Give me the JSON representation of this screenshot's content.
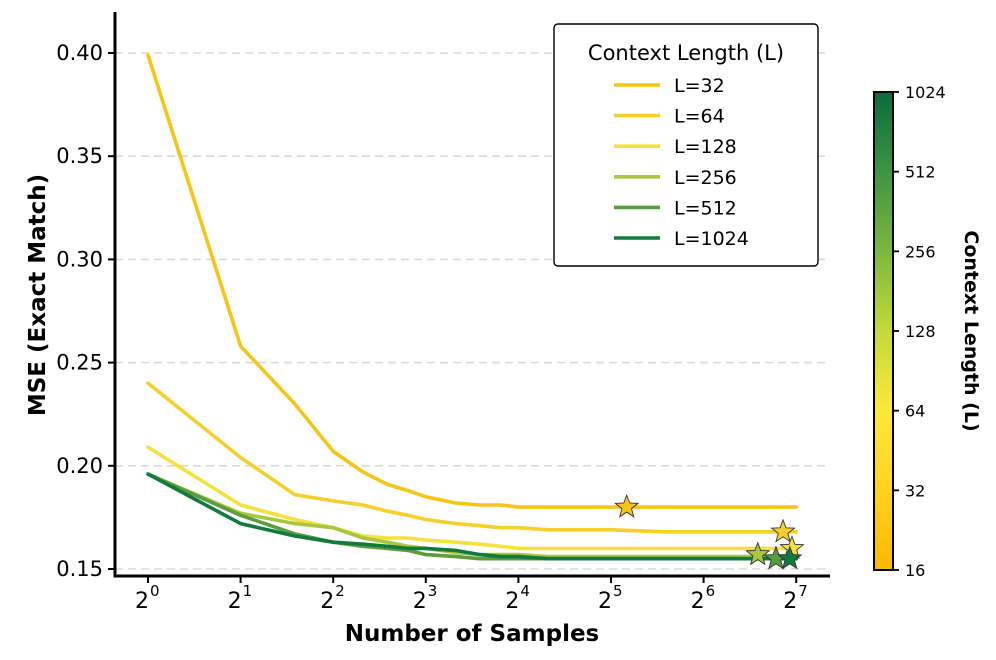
{
  "chart_data": {
    "type": "line",
    "xlabel": "Number of Samples",
    "ylabel": "MSE (Exact Match)",
    "x_scale": "log2",
    "xlim": [
      0.75,
      141
    ],
    "ylim": [
      0.147,
      0.42
    ],
    "x_ticks": [
      {
        "value": 1,
        "base": "2",
        "exp": "0"
      },
      {
        "value": 2,
        "base": "2",
        "exp": "1"
      },
      {
        "value": 4,
        "base": "2",
        "exp": "2"
      },
      {
        "value": 8,
        "base": "2",
        "exp": "3"
      },
      {
        "value": 16,
        "base": "2",
        "exp": "4"
      },
      {
        "value": 32,
        "base": "2",
        "exp": "5"
      },
      {
        "value": 64,
        "base": "2",
        "exp": "6"
      },
      {
        "value": 128,
        "base": "2",
        "exp": "7"
      }
    ],
    "y_ticks": [
      "0.15",
      "0.20",
      "0.25",
      "0.30",
      "0.35",
      "0.40"
    ],
    "grid": "horizontal dashed",
    "legend": {
      "title": "Context Length (L)",
      "placement": "top-right"
    },
    "x": [
      1,
      2,
      3,
      4,
      5,
      6,
      7,
      8,
      10,
      12,
      14,
      16,
      20,
      24,
      32,
      48,
      64,
      96,
      128
    ],
    "series": [
      {
        "name": "L=32",
        "context_length": 32,
        "color": "#f5c518",
        "values": [
          0.399,
          0.258,
          0.23,
          0.207,
          0.197,
          0.191,
          0.188,
          0.185,
          0.182,
          0.181,
          0.181,
          0.18,
          0.18,
          0.18,
          0.18,
          0.18,
          0.18,
          0.18,
          0.18
        ],
        "best": {
          "x": 36,
          "y": 0.18
        }
      },
      {
        "name": "L=64",
        "context_length": 64,
        "color": "#f3d02b",
        "values": [
          0.24,
          0.204,
          0.186,
          0.183,
          0.181,
          0.178,
          0.176,
          0.174,
          0.172,
          0.171,
          0.17,
          0.17,
          0.169,
          0.169,
          0.169,
          0.168,
          0.168,
          0.168,
          0.168
        ],
        "best": {
          "x": 116,
          "y": 0.168
        }
      },
      {
        "name": "L=128",
        "context_length": 128,
        "color": "#f4e23c",
        "values": [
          0.209,
          0.181,
          0.174,
          0.17,
          0.166,
          0.165,
          0.165,
          0.164,
          0.163,
          0.162,
          0.161,
          0.16,
          0.16,
          0.16,
          0.16,
          0.16,
          0.16,
          0.16,
          0.16
        ],
        "best": {
          "x": 124,
          "y": 0.16
        }
      },
      {
        "name": "L=256",
        "context_length": 256,
        "color": "#a9c73e",
        "values": [
          0.196,
          0.177,
          0.172,
          0.17,
          0.165,
          0.163,
          0.161,
          0.16,
          0.158,
          0.157,
          0.157,
          0.157,
          0.156,
          0.156,
          0.156,
          0.156,
          0.156,
          0.156,
          0.156
        ],
        "best": {
          "x": 96,
          "y": 0.157
        }
      },
      {
        "name": "L=512",
        "context_length": 512,
        "color": "#5b9c3e",
        "values": [
          0.196,
          0.176,
          0.167,
          0.163,
          0.161,
          0.16,
          0.159,
          0.157,
          0.156,
          0.155,
          0.155,
          0.155,
          0.155,
          0.155,
          0.155,
          0.155,
          0.155,
          0.155,
          0.155
        ],
        "best": {
          "x": 110,
          "y": 0.155
        }
      },
      {
        "name": "L=1024",
        "context_length": 1024,
        "color": "#127a3c",
        "values": [
          0.196,
          0.172,
          0.166,
          0.163,
          0.162,
          0.161,
          0.16,
          0.16,
          0.159,
          0.157,
          0.156,
          0.156,
          0.155,
          0.155,
          0.155,
          0.155,
          0.155,
          0.155,
          0.155
        ],
        "best": {
          "x": 122,
          "y": 0.155
        }
      }
    ],
    "colorbar": {
      "label": "Context Length (L)",
      "scale": "log2",
      "range": [
        16,
        1024
      ],
      "ticks": [
        "16",
        "32",
        "64",
        "128",
        "256",
        "512",
        "1024"
      ],
      "tick_values": [
        16,
        32,
        64,
        128,
        256,
        512,
        1024
      ],
      "colors": [
        "#fbb800",
        "#ffd21f",
        "#fde93a",
        "#c4d93a",
        "#7cb73f",
        "#3e9442",
        "#0a6c3c"
      ]
    }
  }
}
